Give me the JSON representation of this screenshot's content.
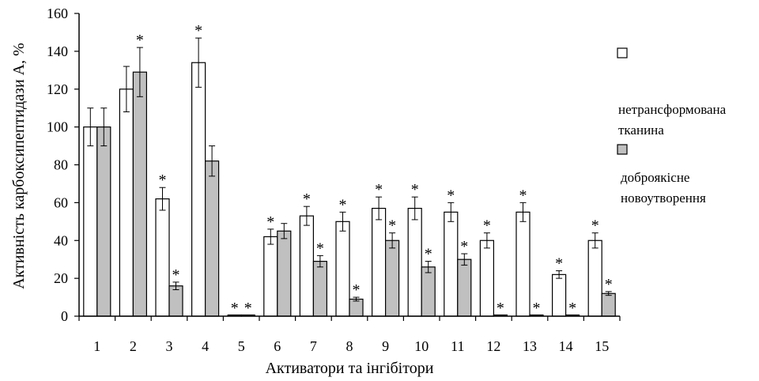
{
  "chart_data": {
    "type": "bar",
    "categories": [
      "1",
      "2",
      "3",
      "4",
      "5",
      "6",
      "7",
      "8",
      "9",
      "10",
      "11",
      "12",
      "13",
      "14",
      "15"
    ],
    "series": [
      {
        "name": "нетрансформована тканина",
        "values": [
          100,
          120,
          62,
          134,
          0.5,
          42,
          53,
          50,
          57,
          57,
          55,
          40,
          55,
          22,
          40
        ],
        "errors": [
          10,
          12,
          6,
          13,
          0,
          4,
          5,
          5,
          6,
          6,
          5,
          4,
          5,
          2,
          4
        ],
        "significant": [
          false,
          false,
          true,
          true,
          true,
          true,
          true,
          true,
          true,
          true,
          true,
          true,
          true,
          true,
          true
        ],
        "color": "#ffffff"
      },
      {
        "name": "доброякісне новоутворення",
        "values": [
          100,
          129,
          16,
          82,
          0.5,
          45,
          29,
          9,
          40,
          26,
          30,
          0.5,
          0.5,
          0.5,
          12
        ],
        "errors": [
          10,
          13,
          2,
          8,
          0,
          4,
          3,
          1,
          4,
          3,
          3,
          0,
          0,
          0,
          1
        ],
        "significant": [
          false,
          true,
          true,
          false,
          true,
          false,
          true,
          true,
          true,
          true,
          true,
          true,
          true,
          true,
          true
        ],
        "color": "#c0c0c0"
      }
    ],
    "yticks": [
      "0",
      "20",
      "40",
      "60",
      "80",
      "100",
      "120",
      "140",
      "160"
    ],
    "ylim": [
      0,
      160
    ],
    "xlabel": "Активатори та інгібітори",
    "ylabel": "Активність карбоксипептидази А, %",
    "significance_mark": "*",
    "legend_position": "right",
    "legend": [
      {
        "line1": "нетрансформована",
        "line2": "тканина"
      },
      {
        "line1": "доброякісне",
        "line2": "новоутворення"
      }
    ],
    "grid": false
  }
}
